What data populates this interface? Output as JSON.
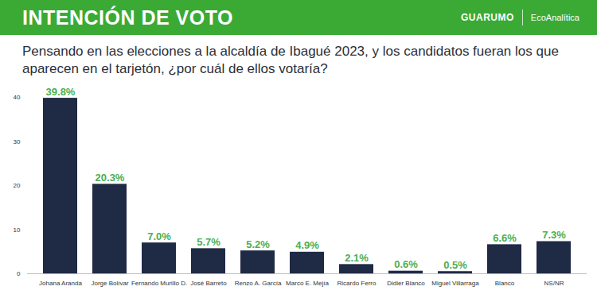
{
  "chart_data": {
    "type": "bar",
    "title": "INTENCIÓN DE VOTO",
    "subtitle": "Pensando en las elecciones a la alcaldía de Ibagué 2023, y los candidatos fueran los que aparecen en el tarjetón, ¿por cuál de ellos votaría?",
    "annotations": [
      "GUARUMO",
      "EcoAnalítica"
    ],
    "categories": [
      "Johana Aranda",
      "Jorge Bolívar",
      "Fernando Murillo D.",
      "José Barreto",
      "Renzo A. García",
      "Marco E. Mejía",
      "Ricardo Ferro",
      "Didier Blanco",
      "Miguel Villarraga",
      "Blanco",
      "NS/NR"
    ],
    "values": [
      39.8,
      20.3,
      7.0,
      5.7,
      5.2,
      4.9,
      2.1,
      0.6,
      0.5,
      6.6,
      7.3
    ],
    "value_labels": [
      "39.8%",
      "20.3%",
      "7.0%",
      "5.7%",
      "5.2%",
      "4.9%",
      "2.1%",
      "0.6%",
      "0.5%",
      "6.6%",
      "7.3%"
    ],
    "data_labels": true,
    "color": "#1f2a44",
    "ylim": [
      0,
      40
    ],
    "yticks": [
      0,
      10,
      20,
      30,
      40
    ],
    "grid": false
  }
}
